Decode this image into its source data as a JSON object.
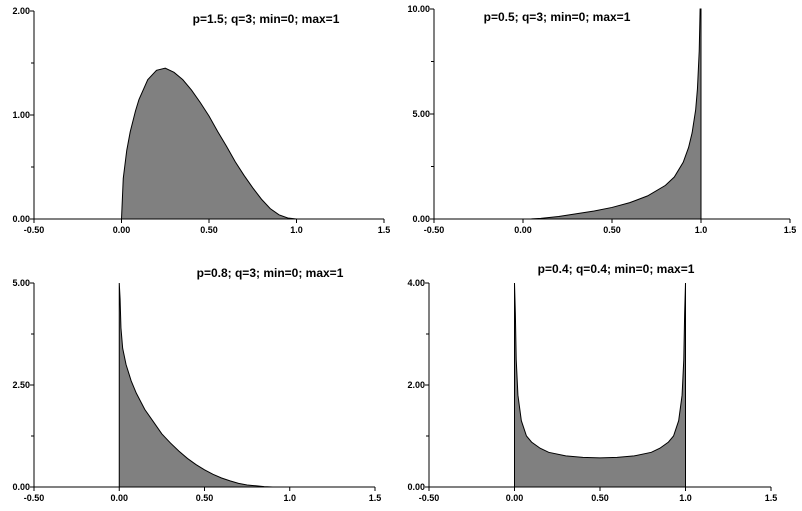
{
  "figure": {
    "background": "#ffffff",
    "fill_color": "#808080",
    "axis_color": "#000000"
  },
  "chart_data": [
    {
      "type": "area",
      "title": "p=1.5; q=3; min=0; max=1",
      "xlim": [
        -0.5,
        1.5
      ],
      "ylim": [
        0,
        2
      ],
      "x_ticks": [
        -0.5,
        0,
        0.5,
        1.0,
        1.5
      ],
      "x_tick_labels": [
        "-0.50",
        "0.00",
        "0.50",
        "1.0",
        "1.5"
      ],
      "y_ticks": [
        0,
        1,
        2
      ],
      "y_tick_labels": [
        "0.00",
        "1.00",
        "2.00"
      ],
      "grid": false,
      "series": [
        {
          "x": [
            0,
            0.01,
            0.03,
            0.05,
            0.08,
            0.1,
            0.15,
            0.2,
            0.25,
            0.3,
            0.35,
            0.4,
            0.45,
            0.5,
            0.55,
            0.6,
            0.65,
            0.7,
            0.75,
            0.8,
            0.85,
            0.9,
            0.95,
            1.0
          ],
          "y": [
            0,
            0.39,
            0.66,
            0.84,
            1.04,
            1.15,
            1.34,
            1.43,
            1.45,
            1.41,
            1.34,
            1.24,
            1.12,
            0.99,
            0.84,
            0.7,
            0.55,
            0.42,
            0.3,
            0.19,
            0.1,
            0.04,
            0.01,
            0
          ]
        }
      ]
    },
    {
      "type": "area",
      "title": "p=0.5; q=3; min=0; max=1",
      "xlim": [
        -0.5,
        1.5
      ],
      "ylim": [
        0,
        10
      ],
      "x_ticks": [
        -0.5,
        0,
        0.5,
        1.0,
        1.5
      ],
      "x_tick_labels": [
        "-0.50",
        "0.00",
        "0.50",
        "1.0",
        "1.5"
      ],
      "y_ticks": [
        0,
        5,
        10
      ],
      "y_tick_labels": [
        "0.00",
        "5.00",
        "10.00"
      ],
      "grid": false,
      "series": [
        {
          "x": [
            0.05,
            0.1,
            0.2,
            0.3,
            0.4,
            0.5,
            0.6,
            0.7,
            0.8,
            0.85,
            0.9,
            0.93,
            0.95,
            0.97,
            0.98,
            0.99,
            0.995,
            1.0
          ],
          "y": [
            0.01,
            0.03,
            0.12,
            0.25,
            0.38,
            0.55,
            0.78,
            1.1,
            1.6,
            2.0,
            2.7,
            3.4,
            4.1,
            5.2,
            6.2,
            8.0,
            10.0,
            10.0
          ]
        }
      ]
    },
    {
      "type": "area",
      "title": "p=0.8; q=3; min=0; max=1",
      "xlim": [
        -0.5,
        1.5
      ],
      "ylim": [
        0,
        5
      ],
      "x_ticks": [
        -0.5,
        0,
        0.5,
        1.0,
        1.5
      ],
      "x_tick_labels": [
        "-0.50",
        "0.00",
        "0.50",
        "1.0",
        "1.5"
      ],
      "y_ticks": [
        0,
        2.5,
        5
      ],
      "y_tick_labels": [
        "0.00",
        "2.50",
        "5.00"
      ],
      "grid": false,
      "series": [
        {
          "x": [
            0,
            0.005,
            0.01,
            0.02,
            0.04,
            0.07,
            0.1,
            0.15,
            0.2,
            0.25,
            0.3,
            0.35,
            0.4,
            0.45,
            0.5,
            0.55,
            0.6,
            0.65,
            0.7,
            0.75,
            0.8,
            0.85,
            0.9,
            0.95,
            1.0
          ],
          "y": [
            5.0,
            4.6,
            3.9,
            3.4,
            3.0,
            2.6,
            2.3,
            1.9,
            1.6,
            1.3,
            1.08,
            0.88,
            0.7,
            0.55,
            0.42,
            0.31,
            0.22,
            0.15,
            0.09,
            0.05,
            0.03,
            0.01,
            0,
            0,
            0
          ]
        }
      ]
    },
    {
      "type": "area",
      "title": "p=0.4; q=0.4; min=0; max=1",
      "xlim": [
        -0.5,
        1.5
      ],
      "ylim": [
        0,
        4
      ],
      "x_ticks": [
        -0.5,
        0,
        0.5,
        1.0,
        1.5
      ],
      "x_tick_labels": [
        "-0.50",
        "0.00",
        "0.50",
        "1.0",
        "1.5"
      ],
      "y_ticks": [
        0,
        2,
        4
      ],
      "y_tick_labels": [
        "0.00",
        "2.00",
        "4.00"
      ],
      "grid": false,
      "series": [
        {
          "x": [
            0,
            0.005,
            0.01,
            0.02,
            0.04,
            0.07,
            0.1,
            0.15,
            0.2,
            0.3,
            0.4,
            0.5,
            0.6,
            0.7,
            0.8,
            0.85,
            0.9,
            0.93,
            0.96,
            0.98,
            0.99,
            0.995,
            1.0
          ],
          "y": [
            4.0,
            3.4,
            2.5,
            1.8,
            1.3,
            1.0,
            0.88,
            0.76,
            0.68,
            0.61,
            0.58,
            0.57,
            0.58,
            0.61,
            0.68,
            0.76,
            0.88,
            1.0,
            1.3,
            1.8,
            2.5,
            3.4,
            4.0
          ]
        }
      ]
    }
  ]
}
